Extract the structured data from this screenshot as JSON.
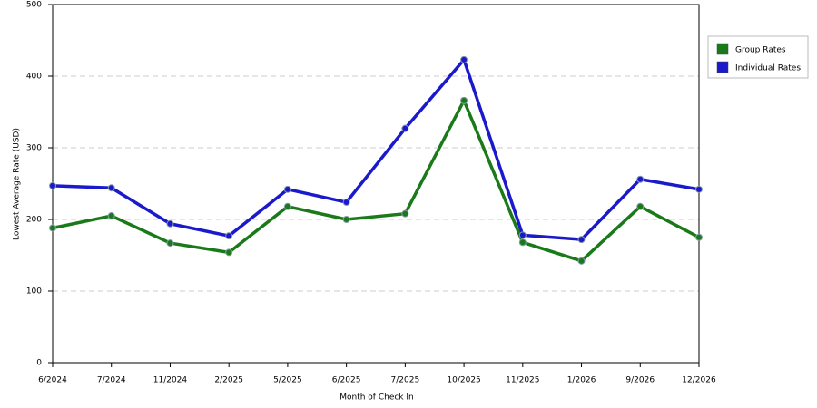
{
  "chart_data": {
    "type": "line",
    "x_label": "Month of Check In",
    "y_label": "Lowest Average Rate (USD)",
    "categories": [
      "6/2024",
      "7/2024",
      "11/2024",
      "2/2025",
      "5/2025",
      "6/2025",
      "7/2025",
      "10/2025",
      "11/2025",
      "1/2026",
      "9/2026",
      "12/2026"
    ],
    "series": [
      {
        "name": "Group Rates",
        "color": "#1a7a1a",
        "values": [
          188,
          205,
          167,
          154,
          218,
          200,
          208,
          366,
          168,
          142,
          218,
          175
        ]
      },
      {
        "name": "Individual Rates",
        "color": "#1a1acc",
        "values": [
          247,
          244,
          194,
          177,
          242,
          224,
          327,
          423,
          178,
          172,
          256,
          242
        ]
      }
    ],
    "ylim": [
      0,
      500
    ],
    "yticks": [
      0,
      100,
      200,
      300,
      400,
      500
    ],
    "grid": true,
    "legend": "right"
  }
}
